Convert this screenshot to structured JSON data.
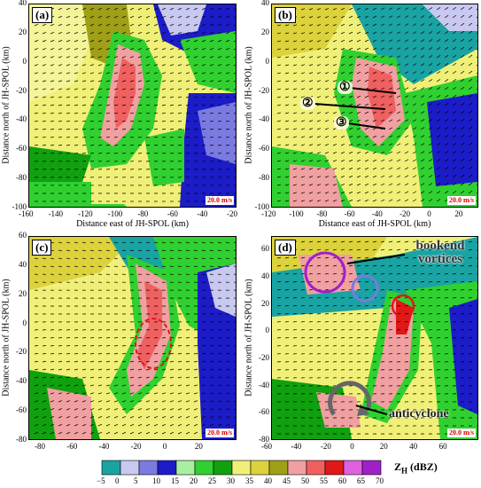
{
  "chart_data": [
    {
      "type": "heatmap",
      "panel": "(a)",
      "xlabel": "Distance east of JH-SPOL (km)",
      "ylabel": "Distance north of JH-SPOL (km)",
      "xlim": [
        -160,
        -20
      ],
      "ylim": [
        -100,
        40
      ],
      "xticks": [
        "-160",
        "-140",
        "-120",
        "-100",
        "-80",
        "-60",
        "-40",
        "-20"
      ],
      "yticks": [
        "40",
        "20",
        "0",
        "-20",
        "-40",
        "-60",
        "-80",
        "-100"
      ],
      "wind_scale": "20.0 m/s",
      "annotations": []
    },
    {
      "type": "heatmap",
      "panel": "(b)",
      "xlabel": "Distance east of JH-SPOL (km)",
      "ylabel": "Distance north of JH-SPOL (km)",
      "xlim": [
        -120,
        30
      ],
      "ylim": [
        -100,
        40
      ],
      "xticks": [
        "-120",
        "-100",
        "-80",
        "-60",
        "-40",
        "-20",
        "0",
        "20"
      ],
      "yticks": [
        "40",
        "20",
        "0",
        "-20",
        "-40",
        "-60",
        "-80",
        "-100"
      ],
      "wind_scale": "20.0 m/s",
      "annotations": [
        "①",
        "②",
        "③"
      ]
    },
    {
      "type": "heatmap",
      "panel": "(c)",
      "xlabel": "Distance east of JH-SPOL (km)",
      "ylabel": "Distance north of JH-SPOL (km)",
      "xlim": [
        -90,
        40
      ],
      "ylim": [
        -80,
        60
      ],
      "xticks": [
        "-80",
        "-60",
        "-40",
        "-20",
        "0",
        "20"
      ],
      "yticks": [
        "60",
        "40",
        "20",
        "0",
        "-20",
        "-40",
        "-60",
        "-80"
      ],
      "wind_scale": "20.0 m/s",
      "annotations": []
    },
    {
      "type": "heatmap",
      "panel": "(d)",
      "xlabel": "Distance east of JH-SPOL (km)",
      "ylabel": "Distance north of JH-SPOL (km)",
      "xlim": [
        -60,
        80
      ],
      "ylim": [
        -80,
        70
      ],
      "xticks": [
        "-60",
        "-40",
        "-20",
        "0",
        "20",
        "40",
        "60"
      ],
      "yticks": [
        "60",
        "40",
        "20",
        "0",
        "-20",
        "-40",
        "-60",
        "-80"
      ],
      "wind_scale": "20.0 m/s",
      "annotations": [
        "bookend vortices",
        "anticyclone"
      ]
    }
  ],
  "colorbar": {
    "title": "Z",
    "title_sub": "H",
    "title_unit": " (dBZ)",
    "ticks": [
      "−5",
      "0",
      "5",
      "10",
      "15",
      "20",
      "25",
      "30",
      "35",
      "40",
      "45",
      "50",
      "55",
      "60",
      "65",
      "70"
    ],
    "colors": [
      "#1aa3a3",
      "#c8c8f0",
      "#7a7ae0",
      "#1c1cc8",
      "#a8f0a0",
      "#30d030",
      "#10a010",
      "#f0f078",
      "#dcd23c",
      "#a0a018",
      "#f0a0a0",
      "#f06060",
      "#e01818",
      "#e060e0",
      "#a020c8"
    ]
  },
  "colors": {
    "teal": "#1aa3a3",
    "yellow": "#f0f078",
    "green": "#30d030",
    "blue": "#1c1cc8",
    "pink": "#f0a0a0",
    "red": "#e01818",
    "purple": "#a020c8"
  }
}
